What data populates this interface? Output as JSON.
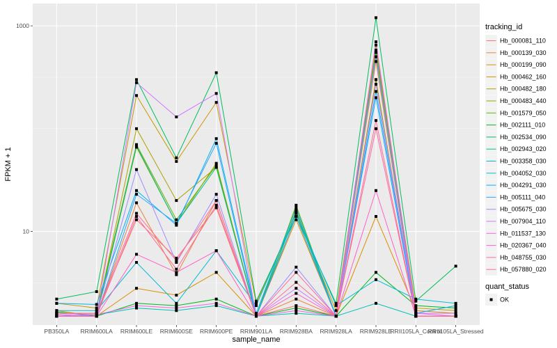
{
  "chart_data": {
    "type": "line",
    "xlabel": "sample_name",
    "ylabel": "FPKM + 1",
    "y_scale": "log10",
    "ylim": [
      1.23,
      1650
    ],
    "y_ticks": [
      10,
      1000
    ],
    "y_tick_labels": [
      "10",
      "1000"
    ],
    "grid": true,
    "background": "#ebebeb",
    "categories": [
      "PB350LA",
      "RRIM600LA",
      "RRIM600LE",
      "RRIM600SE",
      "RRIM600PE",
      "RRIM901LA",
      "RRIM928BA",
      "RRIM928LA",
      "RRIM928LE",
      "RRII105LA_Control",
      "RRII105LA_Stressed"
    ],
    "legend": {
      "position": "right",
      "title": "tracking_id",
      "shape_title": "quant_status",
      "shape_label": "OK"
    },
    "series": [
      {
        "name": "Hb_000081_110",
        "color": "#F8766D",
        "values": [
          1.6,
          1.6,
          13.0,
          5.5,
          17.0,
          1.5,
          1.9,
          1.5,
          300,
          1.5,
          1.5
        ]
      },
      {
        "name": "Hb_000139_030",
        "color": "#EC8239",
        "values": [
          1.55,
          1.5,
          19.0,
          3.8,
          20.0,
          1.5,
          2.2,
          1.5,
          450,
          1.5,
          1.5
        ]
      },
      {
        "name": "Hb_000199_090",
        "color": "#DB8E00",
        "values": [
          1.7,
          1.5,
          2.8,
          2.4,
          4.0,
          1.5,
          13.0,
          1.5,
          14.0,
          1.7,
          1.6
        ]
      },
      {
        "name": "Hb_000462_160",
        "color": "#C79800",
        "values": [
          2.0,
          1.8,
          210,
          48,
          180,
          2.0,
          15.0,
          1.7,
          580,
          1.8,
          1.7
        ]
      },
      {
        "name": "Hb_000482_180",
        "color": "#AEA200",
        "values": [
          1.5,
          1.5,
          100,
          20,
          42,
          1.5,
          14.0,
          1.5,
          650,
          1.5,
          1.5
        ]
      },
      {
        "name": "Hb_000483_440",
        "color": "#8FAA00",
        "values": [
          1.5,
          1.5,
          66,
          12,
          46,
          1.5,
          16.0,
          1.5,
          300,
          1.5,
          1.5
        ]
      },
      {
        "name": "Hb_001579_050",
        "color": "#64B200",
        "values": [
          1.6,
          1.6,
          70,
          13,
          44,
          1.5,
          18.0,
          1.5,
          500,
          1.5,
          1.5
        ]
      },
      {
        "name": "Hb_002111_010",
        "color": "#00B81B",
        "values": [
          1.65,
          1.5,
          2.0,
          1.9,
          2.2,
          1.5,
          1.8,
          1.5,
          4.0,
          1.9,
          1.8
        ]
      },
      {
        "name": "Hb_002534_090",
        "color": "#00BD5C",
        "values": [
          2.2,
          2.6,
          300,
          52,
          350,
          2.1,
          14.0,
          2.0,
          1200,
          2.1,
          4.6
        ]
      },
      {
        "name": "Hb_002943_020",
        "color": "#00C08E",
        "values": [
          1.5,
          1.5,
          68,
          12,
          42,
          1.5,
          15.5,
          1.5,
          550,
          1.5,
          1.5
        ]
      },
      {
        "name": "Hb_003358_030",
        "color": "#00C1B2",
        "values": [
          1.5,
          1.55,
          1.8,
          1.7,
          1.9,
          1.5,
          1.6,
          1.5,
          2.0,
          1.5,
          1.5
        ]
      },
      {
        "name": "Hb_004052_030",
        "color": "#00BCD6",
        "values": [
          1.7,
          1.7,
          5.0,
          2.0,
          6.5,
          1.9,
          15.0,
          1.9,
          3.4,
          2.2,
          2.0
        ]
      },
      {
        "name": "Hb_004291_030",
        "color": "#00B3F2",
        "values": [
          2.0,
          1.95,
          25.0,
          11.5,
          80,
          1.6,
          17.0,
          1.5,
          230,
          1.6,
          1.9
        ]
      },
      {
        "name": "Hb_005111_040",
        "color": "#29A3FF",
        "values": [
          1.5,
          1.5,
          23.0,
          12.0,
          72,
          1.5,
          14.0,
          1.5,
          200,
          1.5,
          1.5
        ]
      },
      {
        "name": "Hb_005675_030",
        "color": "#9C8DFF",
        "values": [
          1.5,
          1.55,
          40,
          5.0,
          23,
          1.5,
          4.5,
          1.5,
          500,
          1.5,
          1.5
        ]
      },
      {
        "name": "Hb_007904_110",
        "color": "#D277FF",
        "values": [
          1.55,
          1.5,
          280,
          130,
          220,
          1.5,
          2.8,
          1.5,
          270,
          1.6,
          1.6
        ]
      },
      {
        "name": "Hb_011537_130",
        "color": "#F166E8",
        "values": [
          1.6,
          1.55,
          1.9,
          1.8,
          2.0,
          1.5,
          1.7,
          1.5,
          700,
          1.6,
          1.5
        ]
      },
      {
        "name": "Hb_020367_040",
        "color": "#FF61C7",
        "values": [
          1.5,
          1.5,
          6.0,
          4.0,
          6.5,
          1.5,
          2.5,
          1.5,
          25.0,
          1.5,
          1.5
        ]
      },
      {
        "name": "Hb_048755_030",
        "color": "#FF689E",
        "values": [
          1.5,
          1.5,
          14.0,
          4.3,
          18.0,
          1.5,
          4.0,
          1.5,
          100,
          1.5,
          1.5
        ]
      },
      {
        "name": "Hb_057880_020",
        "color": "#FF6C91",
        "values": [
          1.6,
          1.6,
          15.0,
          5.2,
          20.0,
          1.5,
          3.2,
          1.5,
          120,
          1.5,
          1.5
        ]
      }
    ]
  }
}
